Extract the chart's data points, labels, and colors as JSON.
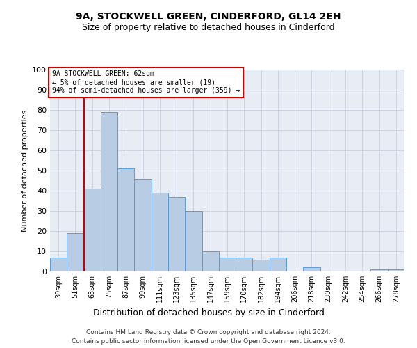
{
  "title": "9A, STOCKWELL GREEN, CINDERFORD, GL14 2EH",
  "subtitle": "Size of property relative to detached houses in Cinderford",
  "xlabel": "Distribution of detached houses by size in Cinderford",
  "ylabel": "Number of detached properties",
  "categories": [
    "39sqm",
    "51sqm",
    "63sqm",
    "75sqm",
    "87sqm",
    "99sqm",
    "111sqm",
    "123sqm",
    "135sqm",
    "147sqm",
    "159sqm",
    "170sqm",
    "182sqm",
    "194sqm",
    "206sqm",
    "218sqm",
    "230sqm",
    "242sqm",
    "254sqm",
    "266sqm",
    "278sqm"
  ],
  "values": [
    7,
    19,
    41,
    79,
    51,
    46,
    39,
    37,
    30,
    10,
    7,
    7,
    6,
    7,
    0,
    2,
    0,
    0,
    0,
    1,
    1
  ],
  "bar_color": "#b8cce4",
  "bar_edge_color": "#5b9bd5",
  "annotation_text_line1": "9A STOCKWELL GREEN: 62sqm",
  "annotation_text_line2": "← 5% of detached houses are smaller (19)",
  "annotation_text_line3": "94% of semi-detached houses are larger (359) →",
  "annotation_box_color": "#ffffff",
  "annotation_box_edge_color": "#cc0000",
  "vertical_line_color": "#cc0000",
  "vertical_line_x": 2,
  "ylim": [
    0,
    100
  ],
  "yticks": [
    0,
    10,
    20,
    30,
    40,
    50,
    60,
    70,
    80,
    90,
    100
  ],
  "grid_color": "#cdd5e3",
  "background_color": "#e8edf5",
  "footer_line1": "Contains HM Land Registry data © Crown copyright and database right 2024.",
  "footer_line2": "Contains public sector information licensed under the Open Government Licence v3.0."
}
